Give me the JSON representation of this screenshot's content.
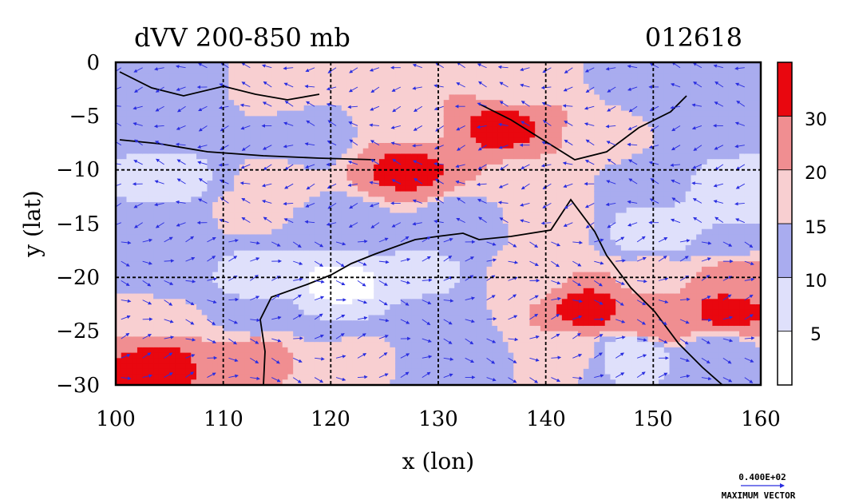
{
  "chart_data": {
    "type": "heatmap",
    "title": "dVV 200-850 mb",
    "subtitle": "012618",
    "xlabel": "x (lon)",
    "ylabel": "y (lat)",
    "xlim": [
      100,
      160
    ],
    "ylim": [
      -30,
      0
    ],
    "xticks": [
      "100",
      "110",
      "120",
      "130",
      "140",
      "150",
      "160"
    ],
    "yticks": [
      "0",
      "−5",
      "−10",
      "−15",
      "−20",
      "−25",
      "−30"
    ],
    "grid": true,
    "colorbar": {
      "levels": [
        0,
        5,
        10,
        15,
        20,
        30,
        35
      ],
      "labels": [
        "5",
        "10",
        "15",
        "20",
        "30"
      ],
      "colors": [
        "#ffffff",
        "#dfe0fb",
        "#a9acef",
        "#f8cfd1",
        "#f08e91",
        "#e9070f"
      ]
    },
    "field_samples": [
      {
        "lon": 105,
        "lat": -2,
        "value": 10
      },
      {
        "lon": 115,
        "lat": -2,
        "value": 18
      },
      {
        "lon": 127,
        "lat": -2,
        "value": 20
      },
      {
        "lon": 137,
        "lat": -2,
        "value": 15
      },
      {
        "lon": 150,
        "lat": -2,
        "value": 12
      },
      {
        "lon": 105,
        "lat": -6,
        "value": 12
      },
      {
        "lon": 118,
        "lat": -7,
        "value": 11
      },
      {
        "lon": 127,
        "lat": -6,
        "value": 17
      },
      {
        "lon": 136,
        "lat": -6,
        "value": 32
      },
      {
        "lon": 146,
        "lat": -7,
        "value": 17
      },
      {
        "lon": 155,
        "lat": -6,
        "value": 12
      },
      {
        "lon": 105,
        "lat": -11,
        "value": 8
      },
      {
        "lon": 115,
        "lat": -11,
        "value": 16
      },
      {
        "lon": 127,
        "lat": -10,
        "value": 32
      },
      {
        "lon": 138,
        "lat": -11,
        "value": 18
      },
      {
        "lon": 150,
        "lat": -11,
        "value": 12
      },
      {
        "lon": 157,
        "lat": -12,
        "value": 7
      },
      {
        "lon": 105,
        "lat": -15,
        "value": 12
      },
      {
        "lon": 112,
        "lat": -14,
        "value": 16
      },
      {
        "lon": 122,
        "lat": -15,
        "value": 12
      },
      {
        "lon": 132,
        "lat": -15,
        "value": 11
      },
      {
        "lon": 140,
        "lat": -15,
        "value": 17
      },
      {
        "lon": 150,
        "lat": -16,
        "value": 7
      },
      {
        "lon": 157,
        "lat": -16,
        "value": 10
      },
      {
        "lon": 105,
        "lat": -19,
        "value": 12
      },
      {
        "lon": 113,
        "lat": -20,
        "value": 8
      },
      {
        "lon": 121,
        "lat": -21,
        "value": 3
      },
      {
        "lon": 129,
        "lat": -20,
        "value": 9
      },
      {
        "lon": 138,
        "lat": -20,
        "value": 16
      },
      {
        "lon": 150,
        "lat": -20,
        "value": 18
      },
      {
        "lon": 158,
        "lat": -20,
        "value": 22
      },
      {
        "lon": 104,
        "lat": -24,
        "value": 16
      },
      {
        "lon": 113,
        "lat": -24,
        "value": 13
      },
      {
        "lon": 121,
        "lat": -24,
        "value": 10
      },
      {
        "lon": 131,
        "lat": -24,
        "value": 15
      },
      {
        "lon": 144,
        "lat": -23,
        "value": 32
      },
      {
        "lon": 150,
        "lat": -24,
        "value": 28
      },
      {
        "lon": 157,
        "lat": -23,
        "value": 32
      },
      {
        "lon": 104,
        "lat": -28,
        "value": 32
      },
      {
        "lon": 113,
        "lat": -27,
        "value": 22
      },
      {
        "lon": 122,
        "lat": -27,
        "value": 17
      },
      {
        "lon": 131,
        "lat": -27,
        "value": 12
      },
      {
        "lon": 142,
        "lat": -27,
        "value": 16
      },
      {
        "lon": 148,
        "lat": -27,
        "value": 6
      },
      {
        "lon": 156,
        "lat": -27,
        "value": 12
      }
    ],
    "vector_legend": {
      "value_label": "0.400E+02",
      "caption": "MAXIMUM VECTOR"
    }
  }
}
